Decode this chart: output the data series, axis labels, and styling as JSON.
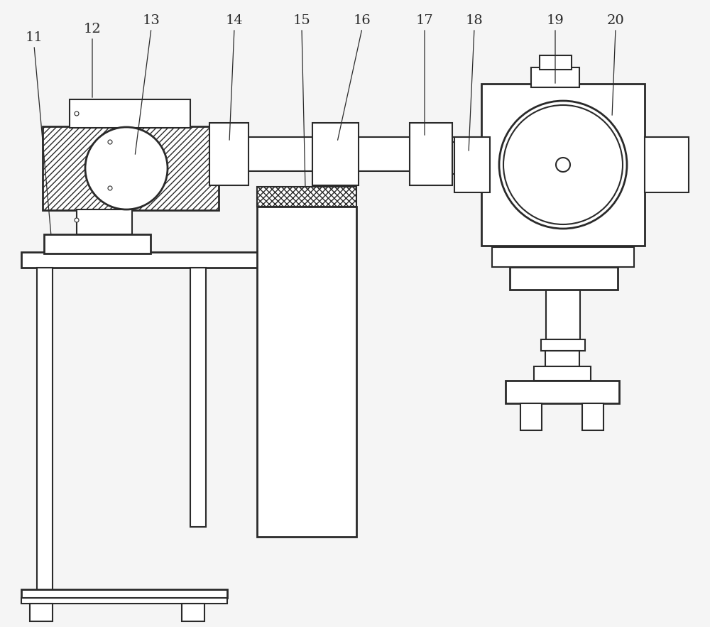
{
  "bg": "#f5f5f5",
  "lc": "#2a2a2a",
  "lw": 1.5,
  "lw_thick": 2.0,
  "hatch_diagonal": "////",
  "hatch_cross": "xxxx",
  "font_size": 14
}
